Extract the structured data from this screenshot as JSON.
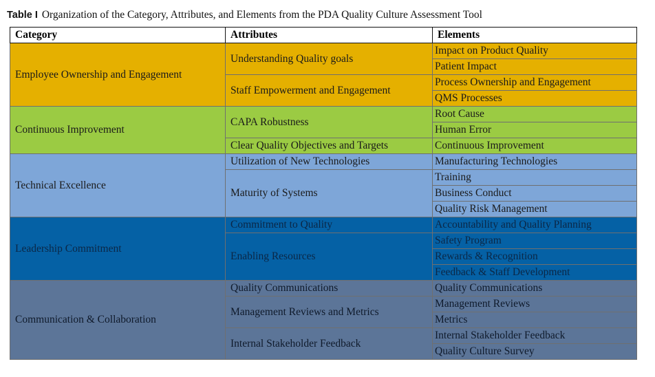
{
  "caption": {
    "label": "Table I",
    "text": "Organization of the Category, Attributes, and Elements from the PDA Quality Culture Assessment Tool"
  },
  "headers": {
    "category": "Category",
    "attributes": "Attributes",
    "elements": "Elements"
  },
  "groups": [
    {
      "category": "Employee Ownership and Engagement",
      "color": "#e5b000",
      "attributes": [
        {
          "name": "Understanding Quality goals",
          "elements": [
            "Impact on Product Quality",
            "Patient Impact"
          ]
        },
        {
          "name": "Staff Empowerment and Engagement",
          "elements": [
            "Process Ownership and Engagement",
            "QMS Processes"
          ]
        }
      ]
    },
    {
      "category": "Continuous Improvement",
      "color": "#9bcb43",
      "attributes": [
        {
          "name": "CAPA Robustness",
          "elements": [
            "Root Cause",
            "Human Error"
          ]
        },
        {
          "name": "Clear Quality Objectives and Targets",
          "elements": [
            "Continuous Improvement"
          ]
        }
      ]
    },
    {
      "category": "Technical Excellence",
      "color": "#7ea6d8",
      "attributes": [
        {
          "name": "Utilization of New Technologies",
          "elements": [
            "Manufacturing Technologies"
          ]
        },
        {
          "name": "Maturity of Systems",
          "elements": [
            "Training",
            "Business Conduct",
            "Quality Risk Management"
          ]
        }
      ]
    },
    {
      "category": "Leadership Commitment",
      "color": "#0561a5",
      "attributes": [
        {
          "name": "Commitment to Quality",
          "elements": [
            "Accountability and Quality Planning"
          ]
        },
        {
          "name": "Enabling Resources",
          "elements": [
            "Safety Program",
            "Rewards & Recognition",
            "Feedback & Staff Development"
          ]
        }
      ]
    },
    {
      "category": "Communication & Collaboration",
      "color": "#5c7598",
      "attributes": [
        {
          "name": "Quality Communications",
          "elements": [
            "Quality Communications"
          ]
        },
        {
          "name": "Management Reviews and Metrics",
          "elements": [
            "Management Reviews",
            "Metrics"
          ]
        },
        {
          "name": "Internal Stakeholder Feedback",
          "elements": [
            "Internal Stakeholder Feedback",
            "Quality Culture Survey"
          ]
        }
      ]
    }
  ]
}
